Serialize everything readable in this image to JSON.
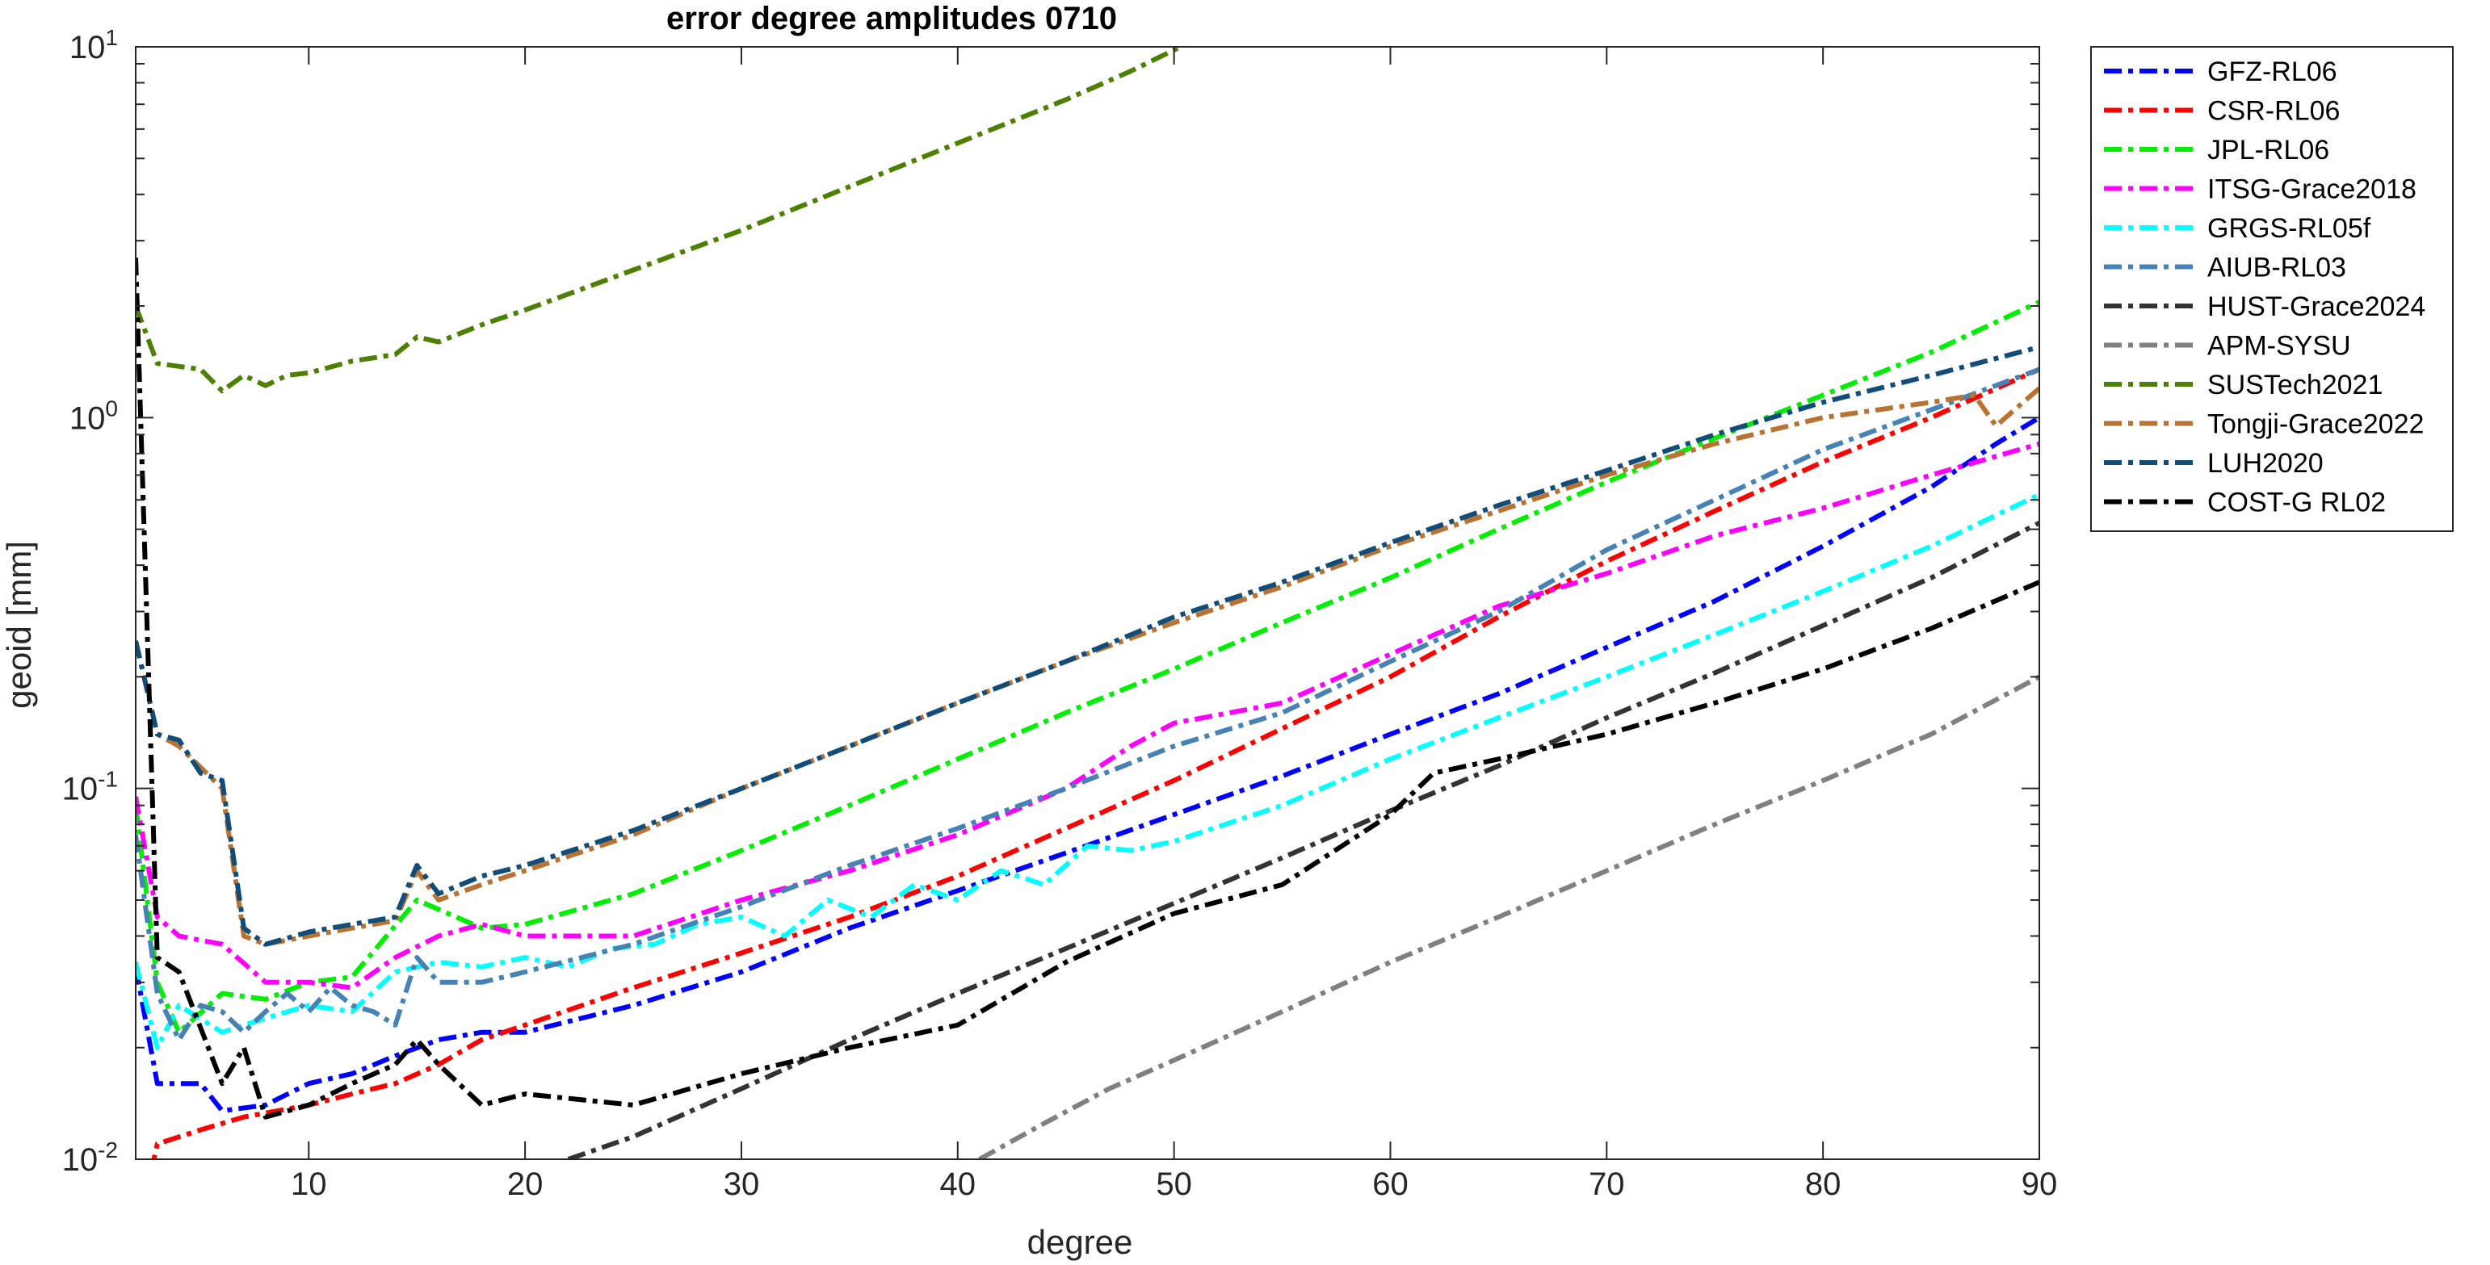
{
  "chart_data": {
    "type": "line",
    "title": "error degree amplitudes 0710",
    "xlabel": "degree",
    "ylabel": "geoid [mm]",
    "xlim": [
      2,
      90
    ],
    "ylim": [
      0.01,
      10
    ],
    "yscale": "log",
    "grid": false,
    "legend_position": "outside-right-top",
    "x_ticks": [
      10,
      20,
      30,
      40,
      50,
      60,
      70,
      80,
      90
    ],
    "x_tick_labels": [
      "10",
      "20",
      "30",
      "40",
      "50",
      "60",
      "70",
      "80",
      "90"
    ],
    "y_ticks": [
      {
        "value": 0.01,
        "base": "10",
        "exp": "-2"
      },
      {
        "value": 0.1,
        "base": "10",
        "exp": "-1"
      },
      {
        "value": 1,
        "base": "10",
        "exp": "0"
      },
      {
        "value": 10,
        "base": "10",
        "exp": "1"
      }
    ],
    "series": [
      {
        "name": "GFZ-RL06",
        "color": "#0000ff",
        "points": [
          [
            2,
            0.033
          ],
          [
            3,
            0.016
          ],
          [
            5,
            0.016
          ],
          [
            6,
            0.0135
          ],
          [
            8,
            0.014
          ],
          [
            10,
            0.016
          ],
          [
            12,
            0.017
          ],
          [
            14,
            0.019
          ],
          [
            16,
            0.021
          ],
          [
            18,
            0.022
          ],
          [
            20,
            0.022
          ],
          [
            25,
            0.026
          ],
          [
            30,
            0.032
          ],
          [
            35,
            0.042
          ],
          [
            40,
            0.053
          ],
          [
            45,
            0.067
          ],
          [
            50,
            0.085
          ],
          [
            55,
            0.108
          ],
          [
            60,
            0.14
          ],
          [
            65,
            0.18
          ],
          [
            70,
            0.24
          ],
          [
            75,
            0.32
          ],
          [
            80,
            0.45
          ],
          [
            85,
            0.65
          ],
          [
            88,
            0.85
          ],
          [
            90,
            1.0
          ]
        ]
      },
      {
        "name": "CSR-RL06",
        "color": "#ff0000",
        "points": [
          [
            2,
            0.006
          ],
          [
            3,
            0.011
          ],
          [
            5,
            0.012
          ],
          [
            7,
            0.013
          ],
          [
            10,
            0.014
          ],
          [
            12,
            0.015
          ],
          [
            14,
            0.016
          ],
          [
            16,
            0.018
          ],
          [
            18,
            0.021
          ],
          [
            20,
            0.023
          ],
          [
            25,
            0.029
          ],
          [
            30,
            0.036
          ],
          [
            35,
            0.045
          ],
          [
            40,
            0.058
          ],
          [
            45,
            0.078
          ],
          [
            50,
            0.105
          ],
          [
            55,
            0.145
          ],
          [
            60,
            0.2
          ],
          [
            65,
            0.29
          ],
          [
            70,
            0.41
          ],
          [
            75,
            0.56
          ],
          [
            80,
            0.76
          ],
          [
            85,
            1.0
          ],
          [
            90,
            1.35
          ]
        ]
      },
      {
        "name": "JPL-RL06",
        "color": "#00ee00",
        "points": [
          [
            2,
            0.09
          ],
          [
            3,
            0.03
          ],
          [
            4,
            0.022
          ],
          [
            6,
            0.028
          ],
          [
            8,
            0.027
          ],
          [
            10,
            0.03
          ],
          [
            12,
            0.031
          ],
          [
            15,
            0.05
          ],
          [
            18,
            0.042
          ],
          [
            20,
            0.043
          ],
          [
            25,
            0.052
          ],
          [
            30,
            0.068
          ],
          [
            35,
            0.09
          ],
          [
            40,
            0.12
          ],
          [
            45,
            0.16
          ],
          [
            50,
            0.21
          ],
          [
            55,
            0.28
          ],
          [
            60,
            0.37
          ],
          [
            65,
            0.5
          ],
          [
            70,
            0.67
          ],
          [
            75,
            0.88
          ],
          [
            80,
            1.15
          ],
          [
            85,
            1.5
          ],
          [
            90,
            2.05
          ]
        ]
      },
      {
        "name": "ITSG-Grace2018",
        "color": "#ff00ff",
        "points": [
          [
            2,
            0.095
          ],
          [
            3,
            0.045
          ],
          [
            4,
            0.04
          ],
          [
            6,
            0.038
          ],
          [
            8,
            0.03
          ],
          [
            10,
            0.03
          ],
          [
            12,
            0.029
          ],
          [
            14,
            0.035
          ],
          [
            16,
            0.04
          ],
          [
            18,
            0.043
          ],
          [
            20,
            0.04
          ],
          [
            25,
            0.04
          ],
          [
            30,
            0.05
          ],
          [
            35,
            0.06
          ],
          [
            40,
            0.075
          ],
          [
            45,
            0.1
          ],
          [
            48,
            0.13
          ],
          [
            50,
            0.15
          ],
          [
            55,
            0.17
          ],
          [
            60,
            0.23
          ],
          [
            65,
            0.31
          ],
          [
            70,
            0.38
          ],
          [
            75,
            0.48
          ],
          [
            80,
            0.57
          ],
          [
            85,
            0.7
          ],
          [
            90,
            0.85
          ]
        ]
      },
      {
        "name": "GRGS-RL05f",
        "color": "#00ffff",
        "points": [
          [
            2,
            0.034
          ],
          [
            3,
            0.02
          ],
          [
            4,
            0.026
          ],
          [
            6,
            0.022
          ],
          [
            8,
            0.024
          ],
          [
            10,
            0.026
          ],
          [
            12,
            0.025
          ],
          [
            14,
            0.032
          ],
          [
            16,
            0.034
          ],
          [
            18,
            0.033
          ],
          [
            20,
            0.035
          ],
          [
            22,
            0.033
          ],
          [
            24,
            0.037
          ],
          [
            26,
            0.038
          ],
          [
            28,
            0.043
          ],
          [
            30,
            0.045
          ],
          [
            32,
            0.04
          ],
          [
            34,
            0.05
          ],
          [
            36,
            0.045
          ],
          [
            38,
            0.055
          ],
          [
            40,
            0.05
          ],
          [
            42,
            0.06
          ],
          [
            44,
            0.055
          ],
          [
            46,
            0.07
          ],
          [
            48,
            0.068
          ],
          [
            50,
            0.072
          ],
          [
            55,
            0.09
          ],
          [
            60,
            0.12
          ],
          [
            65,
            0.155
          ],
          [
            70,
            0.2
          ],
          [
            75,
            0.26
          ],
          [
            80,
            0.34
          ],
          [
            85,
            0.45
          ],
          [
            90,
            0.62
          ]
        ]
      },
      {
        "name": "AIUB-RL03",
        "color": "#4682b4",
        "points": [
          [
            2,
            0.075
          ],
          [
            3,
            0.028
          ],
          [
            4,
            0.021
          ],
          [
            5,
            0.026
          ],
          [
            6,
            0.025
          ],
          [
            7,
            0.022
          ],
          [
            8,
            0.025
          ],
          [
            9,
            0.028
          ],
          [
            10,
            0.025
          ],
          [
            11,
            0.029
          ],
          [
            12,
            0.026
          ],
          [
            13,
            0.025
          ],
          [
            14,
            0.023
          ],
          [
            15,
            0.035
          ],
          [
            16,
            0.03
          ],
          [
            18,
            0.03
          ],
          [
            20,
            0.032
          ],
          [
            25,
            0.038
          ],
          [
            30,
            0.048
          ],
          [
            35,
            0.062
          ],
          [
            40,
            0.078
          ],
          [
            45,
            0.1
          ],
          [
            50,
            0.13
          ],
          [
            55,
            0.16
          ],
          [
            60,
            0.22
          ],
          [
            65,
            0.3
          ],
          [
            70,
            0.44
          ],
          [
            75,
            0.6
          ],
          [
            80,
            0.82
          ],
          [
            85,
            1.05
          ],
          [
            90,
            1.35
          ]
        ]
      },
      {
        "name": "HUST-Grace2024",
        "color": "#333333",
        "points": [
          [
            22,
            0.01
          ],
          [
            25,
            0.0115
          ],
          [
            30,
            0.0155
          ],
          [
            35,
            0.021
          ],
          [
            40,
            0.028
          ],
          [
            45,
            0.037
          ],
          [
            50,
            0.049
          ],
          [
            55,
            0.065
          ],
          [
            60,
            0.087
          ],
          [
            65,
            0.115
          ],
          [
            70,
            0.155
          ],
          [
            75,
            0.205
          ],
          [
            80,
            0.275
          ],
          [
            85,
            0.37
          ],
          [
            90,
            0.52
          ]
        ]
      },
      {
        "name": "APM-SYSU",
        "color": "#808080",
        "points": [
          [
            41,
            0.01
          ],
          [
            44,
            0.0125
          ],
          [
            47,
            0.0155
          ],
          [
            50,
            0.0185
          ],
          [
            55,
            0.025
          ],
          [
            60,
            0.034
          ],
          [
            65,
            0.045
          ],
          [
            70,
            0.06
          ],
          [
            75,
            0.08
          ],
          [
            80,
            0.105
          ],
          [
            85,
            0.14
          ],
          [
            90,
            0.2
          ]
        ]
      },
      {
        "name": "SUSTech2021",
        "color": "#4d8000",
        "points": [
          [
            2,
            2.0
          ],
          [
            3,
            1.4
          ],
          [
            5,
            1.35
          ],
          [
            6,
            1.18
          ],
          [
            7,
            1.3
          ],
          [
            8,
            1.22
          ],
          [
            9,
            1.3
          ],
          [
            10,
            1.32
          ],
          [
            12,
            1.42
          ],
          [
            14,
            1.48
          ],
          [
            15,
            1.65
          ],
          [
            16,
            1.6
          ],
          [
            18,
            1.78
          ],
          [
            20,
            1.95
          ],
          [
            25,
            2.5
          ],
          [
            30,
            3.2
          ],
          [
            35,
            4.2
          ],
          [
            40,
            5.5
          ],
          [
            45,
            7.2
          ],
          [
            48,
            8.6
          ],
          [
            50,
            9.8
          ],
          [
            51,
            10.5
          ]
        ]
      },
      {
        "name": "Tongji-Grace2022",
        "color": "#b87333",
        "points": [
          [
            2,
            0.25
          ],
          [
            3,
            0.14
          ],
          [
            4,
            0.13
          ],
          [
            6,
            0.1
          ],
          [
            7,
            0.04
          ],
          [
            8,
            0.038
          ],
          [
            10,
            0.04
          ],
          [
            12,
            0.042
          ],
          [
            14,
            0.044
          ],
          [
            15,
            0.06
          ],
          [
            16,
            0.05
          ],
          [
            18,
            0.055
          ],
          [
            20,
            0.06
          ],
          [
            25,
            0.075
          ],
          [
            30,
            0.1
          ],
          [
            35,
            0.13
          ],
          [
            40,
            0.17
          ],
          [
            45,
            0.22
          ],
          [
            50,
            0.28
          ],
          [
            55,
            0.35
          ],
          [
            60,
            0.45
          ],
          [
            65,
            0.56
          ],
          [
            70,
            0.7
          ],
          [
            75,
            0.85
          ],
          [
            80,
            1.0
          ],
          [
            85,
            1.1
          ],
          [
            87,
            1.15
          ],
          [
            88,
            0.95
          ],
          [
            90,
            1.2
          ]
        ]
      },
      {
        "name": "LUH2020",
        "color": "#124d7a",
        "points": [
          [
            2,
            0.25
          ],
          [
            3,
            0.14
          ],
          [
            4,
            0.135
          ],
          [
            5,
            0.11
          ],
          [
            6,
            0.105
          ],
          [
            7,
            0.042
          ],
          [
            8,
            0.038
          ],
          [
            10,
            0.041
          ],
          [
            12,
            0.043
          ],
          [
            14,
            0.045
          ],
          [
            15,
            0.062
          ],
          [
            16,
            0.052
          ],
          [
            18,
            0.058
          ],
          [
            20,
            0.062
          ],
          [
            25,
            0.077
          ],
          [
            30,
            0.1
          ],
          [
            35,
            0.13
          ],
          [
            40,
            0.17
          ],
          [
            45,
            0.22
          ],
          [
            50,
            0.29
          ],
          [
            55,
            0.36
          ],
          [
            60,
            0.46
          ],
          [
            65,
            0.58
          ],
          [
            70,
            0.72
          ],
          [
            75,
            0.9
          ],
          [
            80,
            1.1
          ],
          [
            85,
            1.3
          ],
          [
            90,
            1.55
          ]
        ]
      },
      {
        "name": "COST-G RL02",
        "color": "#000000",
        "points": [
          [
            2,
            2.7
          ],
          [
            3,
            0.035
          ],
          [
            4,
            0.032
          ],
          [
            6,
            0.016
          ],
          [
            7,
            0.02
          ],
          [
            8,
            0.013
          ],
          [
            10,
            0.014
          ],
          [
            12,
            0.016
          ],
          [
            14,
            0.018
          ],
          [
            15,
            0.021
          ],
          [
            16,
            0.018
          ],
          [
            18,
            0.014
          ],
          [
            20,
            0.015
          ],
          [
            25,
            0.014
          ],
          [
            30,
            0.017
          ],
          [
            35,
            0.02
          ],
          [
            40,
            0.023
          ],
          [
            45,
            0.034
          ],
          [
            50,
            0.046
          ],
          [
            55,
            0.055
          ],
          [
            60,
            0.085
          ],
          [
            62,
            0.11
          ],
          [
            65,
            0.12
          ],
          [
            70,
            0.14
          ],
          [
            75,
            0.17
          ],
          [
            80,
            0.21
          ],
          [
            85,
            0.27
          ],
          [
            90,
            0.36
          ]
        ]
      }
    ]
  }
}
